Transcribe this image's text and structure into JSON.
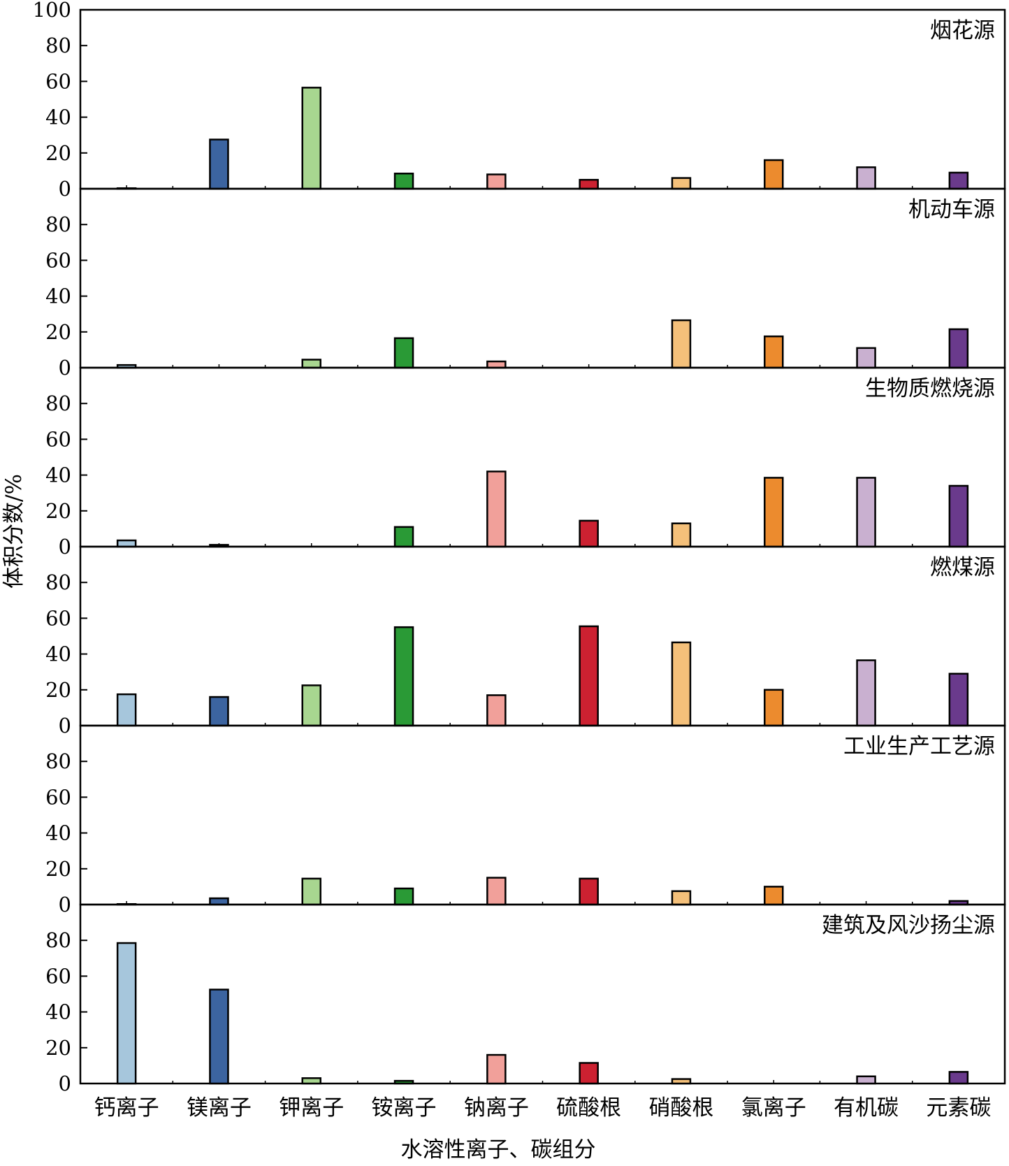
{
  "chart_data": {
    "type": "bar",
    "xlabel": "水溶性离子、碳组分",
    "ylabel": "体积分数/%",
    "ylim": [
      0,
      100
    ],
    "yticks_top": [
      0,
      20,
      40,
      60,
      80,
      100
    ],
    "yticks": [
      0,
      20,
      40,
      60,
      80
    ],
    "categories": [
      "钙离子",
      "镁离子",
      "钾离子",
      "铵离子",
      "钠离子",
      "硫酸根",
      "硝酸根",
      "氯离子",
      "有机碳",
      "元素碳"
    ],
    "colors": [
      "#a6c6dc",
      "#3c64a0",
      "#a8d690",
      "#2a9a36",
      "#f1a09a",
      "#cc2131",
      "#f4c07a",
      "#ec8b2e",
      "#c9b0d0",
      "#6a3a8c"
    ],
    "panels": [
      {
        "title": "烟花源",
        "values": [
          0.3,
          27.5,
          56.5,
          8.5,
          8,
          5,
          6,
          16,
          12,
          9
        ]
      },
      {
        "title": "机动车源",
        "values": [
          1.5,
          0,
          4.5,
          16.5,
          3.5,
          0,
          26.5,
          17.5,
          11,
          21.5
        ]
      },
      {
        "title": "生物质燃烧源",
        "values": [
          3.5,
          1,
          0,
          11,
          42,
          14.5,
          13,
          38.5,
          38.5,
          34
        ]
      },
      {
        "title": "燃煤源",
        "values": [
          17.5,
          16,
          22.5,
          55,
          17,
          55.5,
          46.5,
          20,
          36.5,
          29
        ]
      },
      {
        "title": "工业生产工艺源",
        "values": [
          0.3,
          3.5,
          14.5,
          9,
          15,
          14.5,
          7.5,
          10,
          0,
          2
        ]
      },
      {
        "title": "建筑及风沙扬尘源",
        "values": [
          78.5,
          52.5,
          3,
          1.5,
          16,
          11.5,
          2.5,
          0,
          4,
          6.5
        ]
      }
    ]
  }
}
